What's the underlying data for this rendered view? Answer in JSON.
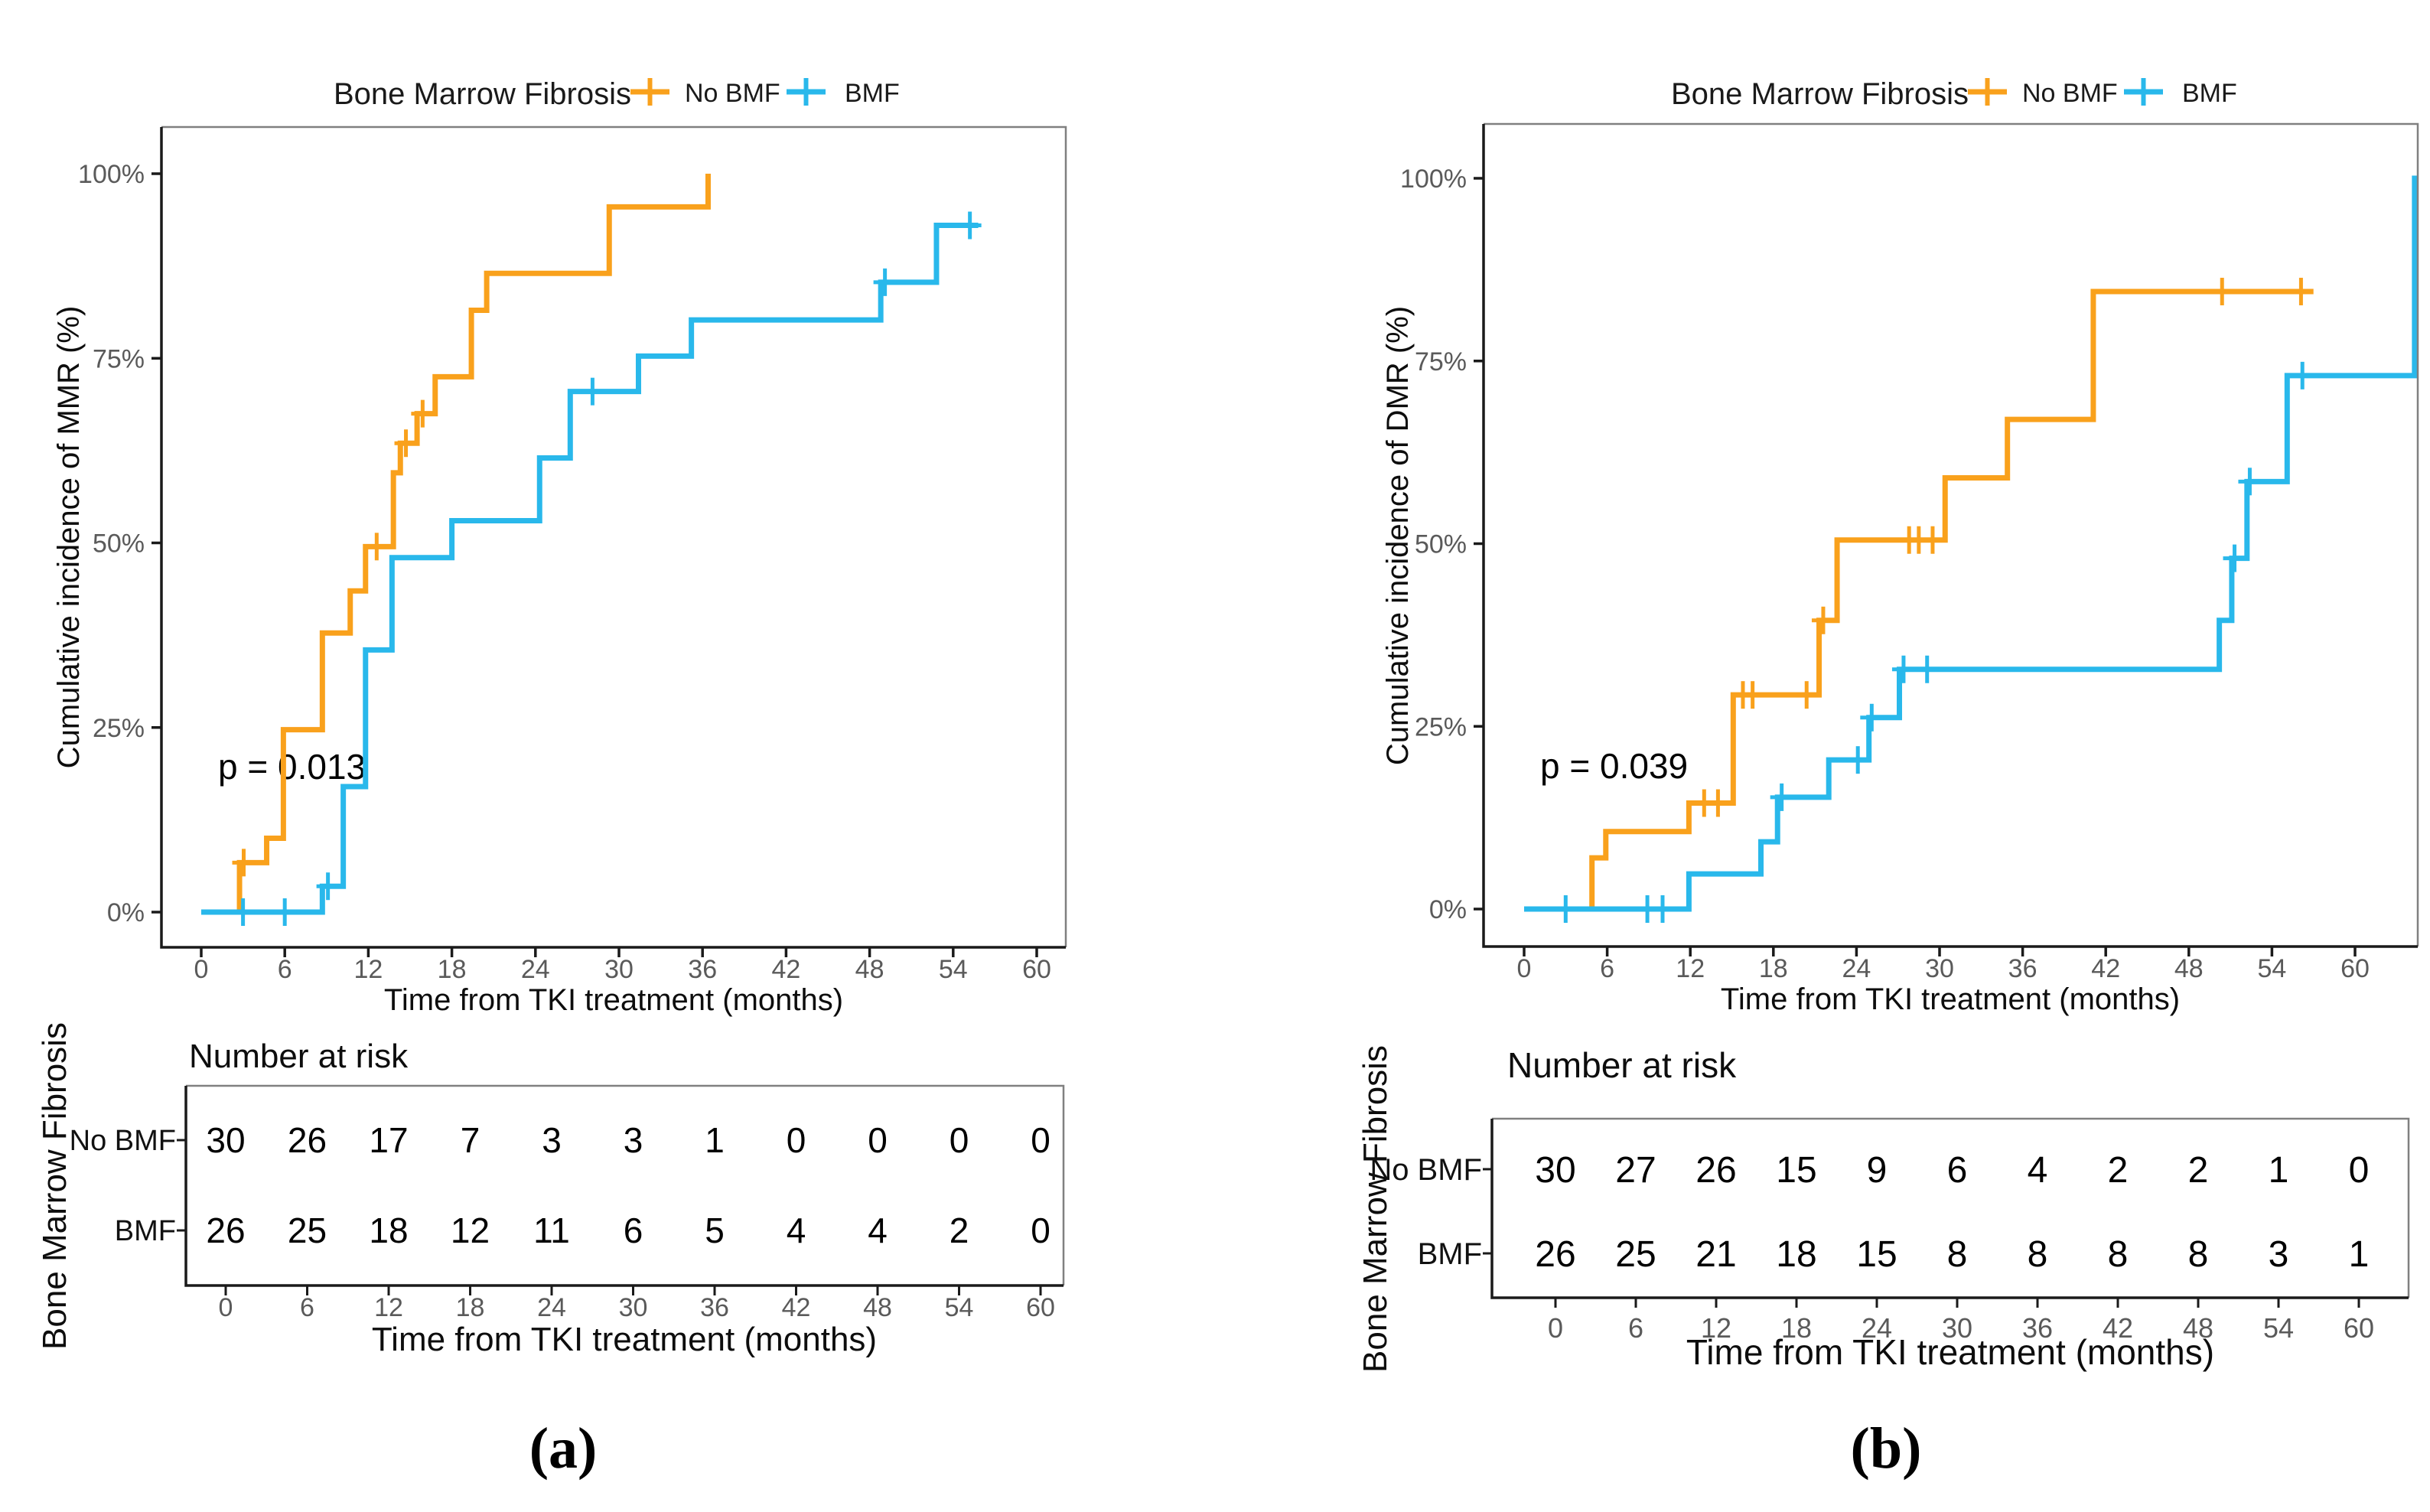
{
  "chart_data": [
    {
      "panel": "a",
      "type": "line",
      "subtype": "cumulative-incidence-step",
      "caption": "(a)",
      "legend": {
        "title": "Bone Marrow Fibrosis",
        "items": [
          {
            "label": "No BMF",
            "color": "#F9A11C"
          },
          {
            "label": "BMF",
            "color": "#29B8EB"
          }
        ]
      },
      "y_label": "Cumulative incidence of MMR (%)",
      "x_label": "Time from TKI treatment (months)",
      "p_value": "p = 0.013",
      "x_ticks": [
        0,
        6,
        12,
        18,
        24,
        30,
        36,
        42,
        48,
        54,
        60
      ],
      "y_ticks": [
        [
          0,
          "0%"
        ],
        [
          25,
          "25%"
        ],
        [
          50,
          "50%"
        ],
        [
          75,
          "75%"
        ],
        [
          100,
          "100%"
        ]
      ],
      "xlim": [
        -2.9,
        62.1
      ],
      "ylim": [
        -4.8,
        106.3
      ],
      "grid": "off",
      "legend_position": "top",
      "series": [
        {
          "name": "No BMF",
          "color": "#F9A11C",
          "steps": [
            [
              0,
              0
            ],
            [
              2.75,
              6.7
            ],
            [
              4.7,
              10
            ],
            [
              5.9,
              24.7
            ],
            [
              8.7,
              37.8
            ],
            [
              10.7,
              43.5
            ],
            [
              11.8,
              49.5
            ],
            [
              13.8,
              59.5
            ],
            [
              14.3,
              63.5
            ],
            [
              15.5,
              67.5
            ],
            [
              16.8,
              72.5
            ],
            [
              19.4,
              81.5
            ],
            [
              20.5,
              86.5
            ],
            [
              29.3,
              95.5
            ],
            [
              36.4,
              100
            ]
          ],
          "end_t": 36.4,
          "censors": [
            [
              3.05,
              6.7
            ],
            [
              12.6,
              49.5
            ],
            [
              14.7,
              63.5
            ],
            [
              15.9,
              67.5
            ]
          ]
        },
        {
          "name": "BMF",
          "color": "#29B8EB",
          "steps": [
            [
              0,
              0
            ],
            [
              8.7,
              3.5
            ],
            [
              10.2,
              17
            ],
            [
              11.8,
              35.5
            ],
            [
              13.7,
              48
            ],
            [
              18.0,
              53
            ],
            [
              24.3,
              61.5
            ],
            [
              26.5,
              70.5
            ],
            [
              31.4,
              75.3
            ],
            [
              35.2,
              80.2
            ],
            [
              48.8,
              85.3
            ],
            [
              52.8,
              93
            ]
          ],
          "end_t": 55.8,
          "censors": [
            [
              3.0,
              0
            ],
            [
              6.0,
              0
            ],
            [
              9.1,
              3.5
            ],
            [
              28.1,
              70.5
            ],
            [
              49.1,
              85.3
            ],
            [
              55.2,
              93
            ]
          ]
        }
      ],
      "risk_table": {
        "title": "Number at risk",
        "y_label": "Bone Marrow Fibrosis",
        "x_label": "Time from TKI treatment (months)",
        "times": [
          0,
          6,
          12,
          18,
          24,
          30,
          36,
          42,
          48,
          54,
          60
        ],
        "rows": [
          {
            "label": "No BMF",
            "color": "#F9A11C",
            "counts": [
              30,
              26,
              17,
              7,
              3,
              3,
              1,
              0,
              0,
              0,
              0
            ]
          },
          {
            "label": "BMF",
            "color": "#29B8EB",
            "counts": [
              26,
              25,
              18,
              12,
              11,
              6,
              5,
              4,
              4,
              2,
              0
            ]
          }
        ]
      }
    },
    {
      "panel": "b",
      "type": "line",
      "subtype": "cumulative-incidence-step",
      "caption": "(b)",
      "legend": {
        "title": "Bone Marrow Fibrosis",
        "items": [
          {
            "label": "No BMF",
            "color": "#F9A11C"
          },
          {
            "label": "BMF",
            "color": "#29B8EB"
          }
        ]
      },
      "y_label": "Cumulative incidence of DMR (%)",
      "x_label": "Time from TKI treatment (months)",
      "p_value": "p = 0.039",
      "x_ticks": [
        0,
        6,
        12,
        18,
        24,
        30,
        36,
        42,
        48,
        54,
        60
      ],
      "y_ticks": [
        [
          0,
          "0%"
        ],
        [
          25,
          "25%"
        ],
        [
          50,
          "50%"
        ],
        [
          75,
          "75%"
        ],
        [
          100,
          "100%"
        ]
      ],
      "xlim": [
        -2.9,
        64.5
      ],
      "ylim": [
        -5.1,
        107.4
      ],
      "grid": "off",
      "legend_position": "top",
      "series": [
        {
          "name": "No BMF",
          "color": "#F9A11C",
          "steps": [
            [
              0,
              0
            ],
            [
              4.9,
              7
            ],
            [
              5.9,
              10.6
            ],
            [
              11.9,
              14.5
            ],
            [
              15.1,
              29.3
            ],
            [
              21.3,
              39.5
            ],
            [
              22.6,
              50.5
            ],
            [
              30.4,
              59
            ],
            [
              34.9,
              67
            ],
            [
              41.1,
              84.5
            ]
          ],
          "end_t": 57.0,
          "censors": [
            [
              13.0,
              14.5
            ],
            [
              14.0,
              14.5
            ],
            [
              15.8,
              29.3
            ],
            [
              16.5,
              29.3
            ],
            [
              20.4,
              29.3
            ],
            [
              21.6,
              39.5
            ],
            [
              27.8,
              50.5
            ],
            [
              28.5,
              50.5
            ],
            [
              29.5,
              50.5
            ],
            [
              50.4,
              84.5
            ],
            [
              56.1,
              84.5
            ]
          ]
        },
        {
          "name": "BMF",
          "color": "#29B8EB",
          "steps": [
            [
              0,
              0
            ],
            [
              11.9,
              4.8
            ],
            [
              17.1,
              9.2
            ],
            [
              18.3,
              15.3
            ],
            [
              22.0,
              20.4
            ],
            [
              24.9,
              26.2
            ],
            [
              27.1,
              32.8
            ],
            [
              50.2,
              39.5
            ],
            [
              51.1,
              48
            ],
            [
              52.2,
              58.5
            ],
            [
              55.1,
              73
            ],
            [
              64.3,
              100
            ]
          ],
          "end_t": 64.5,
          "censors": [
            [
              3.0,
              0
            ],
            [
              8.9,
              0
            ],
            [
              10.0,
              0
            ],
            [
              18.6,
              15.3
            ],
            [
              24.1,
              20.4
            ],
            [
              25.1,
              26.2
            ],
            [
              27.4,
              32.8
            ],
            [
              29.1,
              32.8
            ],
            [
              51.3,
              48
            ],
            [
              52.4,
              58.5
            ],
            [
              56.2,
              73
            ]
          ]
        }
      ],
      "risk_table": {
        "title": "Number at risk",
        "y_label": "Bone Marrow Fibrosis",
        "x_label": "Time from TKI treatment (months)",
        "times": [
          0,
          6,
          12,
          18,
          24,
          30,
          36,
          42,
          48,
          54,
          60
        ],
        "rows": [
          {
            "label": "No BMF",
            "color": "#F9A11C",
            "counts": [
              30,
              27,
              26,
              15,
              9,
              6,
              4,
              2,
              2,
              1,
              0
            ]
          },
          {
            "label": "BMF",
            "color": "#29B8EB",
            "counts": [
              26,
              25,
              21,
              18,
              15,
              8,
              8,
              8,
              8,
              3,
              1
            ]
          }
        ]
      }
    }
  ]
}
